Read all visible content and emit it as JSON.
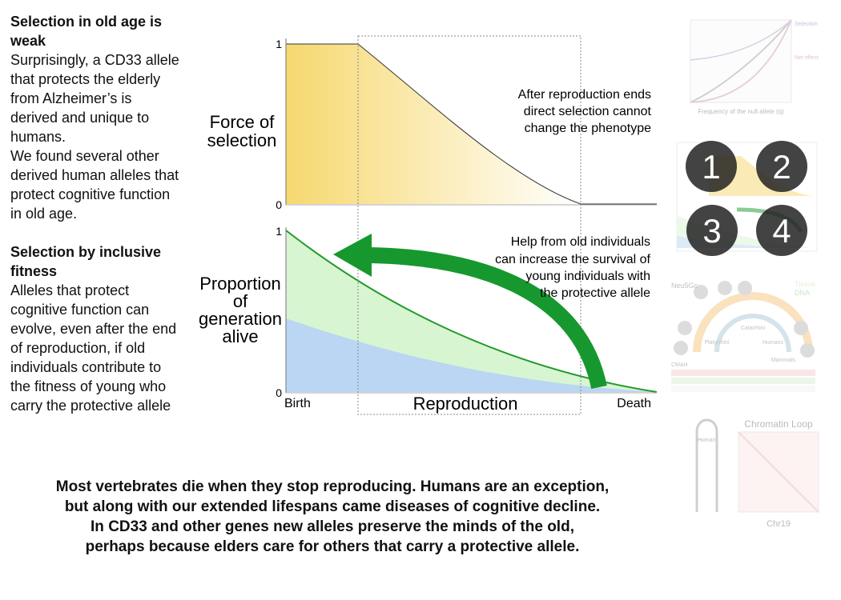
{
  "left_text": {
    "sections": [
      {
        "heading": "Selection in old age is weak",
        "paragraphs": [
          "Surprisingly, a CD33 allele that protects the elderly from Alzheimer’s is derived and unique to humans.",
          "We found several other derived human alleles that protect cognitive function in old age."
        ]
      },
      {
        "heading": "Selection by inclusive fitness",
        "paragraphs": [
          "Alleles that protect cognitive function can evolve, even after the end of reproduction, if old individuals contribute to the fitness of young who carry the protective allele"
        ]
      }
    ]
  },
  "figure": {
    "top_panel": {
      "y_label": [
        "Force of",
        "selection"
      ],
      "y_top": "1",
      "y_bottom": "0",
      "annotation": [
        "After reproduction ends",
        "direct selection cannot",
        "change the phenotype"
      ]
    },
    "bottom_panel": {
      "y_label": [
        "Proportion",
        "of",
        "generation",
        "alive"
      ],
      "y_top": "1",
      "y_bottom": "0",
      "x_labels": [
        "Birth",
        "Reproduction",
        "Death"
      ],
      "annotation": [
        "Help from old individuals",
        "can increase the survival of",
        "young individuals with",
        "the protective allele"
      ]
    }
  },
  "thumbnails": {
    "plot": {
      "x_label": "Frequency of the null allele (q)",
      "legend": [
        "Selection",
        "Net effect"
      ]
    },
    "steps": [
      "1",
      "2",
      "3",
      "4"
    ],
    "tree": {
      "labels": [
        "Neu5Gc",
        "Tissue",
        "DNA",
        "Catarrhini",
        "Humans",
        "Mammals",
        "CMAH",
        "Platyrrhini"
      ]
    },
    "chromatin": {
      "title": "Chromatin Loop",
      "x_label": "Chr19",
      "side_label": "Human"
    }
  },
  "caption": {
    "lines": [
      "Most vertebrates die when they stop reproducing. Humans are an exception,",
      "but along with our extended lifespans came diseases of cognitive decline.",
      "In CD33 and other genes new alleles preserve the minds of the old,",
      "perhaps because elders care for others that carry a protective allele."
    ]
  }
}
